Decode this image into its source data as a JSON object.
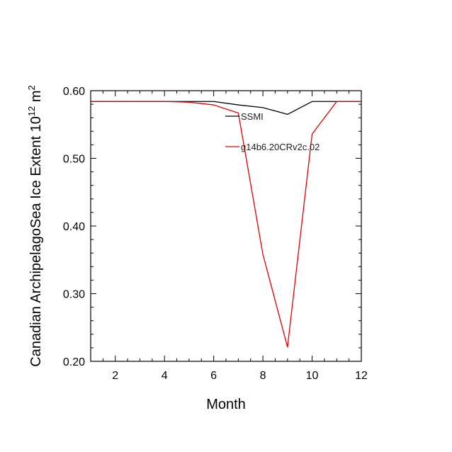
{
  "chart_data": {
    "type": "line",
    "xlabel": "Month",
    "ylabel_main": "Canadian ArchipelagoSea Ice Extent 10",
    "ylabel_exp": "12",
    "ylabel_unit": " m",
    "ylabel_unit_exp": "2",
    "xlim": [
      1,
      12
    ],
    "ylim": [
      0.2,
      0.6
    ],
    "xticks": [
      2,
      4,
      6,
      8,
      10,
      12
    ],
    "xtick_labels": [
      "2",
      "4",
      "6",
      "8",
      "10",
      "12"
    ],
    "yticks": [
      0.2,
      0.3,
      0.4,
      0.5,
      0.6
    ],
    "ytick_labels": [
      "0.20",
      "0.30",
      "0.40",
      "0.50",
      "0.60"
    ],
    "x": [
      1,
      2,
      3,
      4,
      5,
      6,
      7,
      8,
      9,
      10,
      11,
      12
    ],
    "series": [
      {
        "name": "SSMI",
        "color": "#000000",
        "values": [
          0.584,
          0.584,
          0.584,
          0.584,
          0.584,
          0.584,
          0.579,
          0.575,
          0.565,
          0.584,
          0.584,
          0.584
        ]
      },
      {
        "name": "g14b6.20CRv2c.02",
        "color": "#e00000",
        "values": [
          0.584,
          0.584,
          0.584,
          0.584,
          0.583,
          0.579,
          0.567,
          0.358,
          0.221,
          0.536,
          0.584,
          0.584
        ]
      }
    ],
    "grid": false,
    "legend": "upper-right inside plot"
  }
}
